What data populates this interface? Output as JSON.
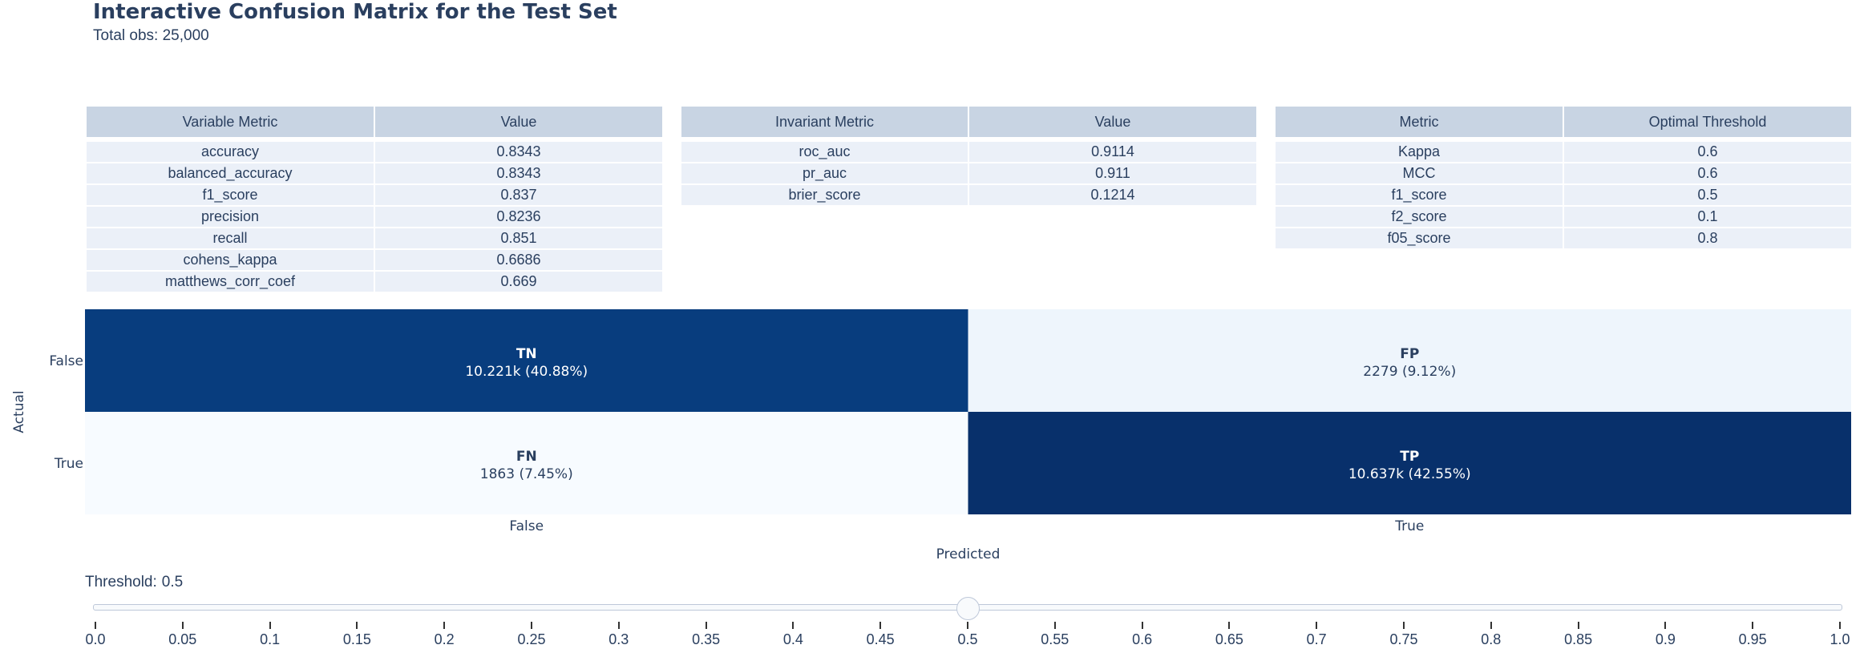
{
  "header": {
    "title": "Interactive Confusion Matrix for the Test Set",
    "subtitle": "Total obs: 25,000"
  },
  "tables": {
    "variable": {
      "headers": [
        "Variable Metric",
        "Value"
      ],
      "rows": [
        [
          "accuracy",
          "0.8343"
        ],
        [
          "balanced_accuracy",
          "0.8343"
        ],
        [
          "f1_score",
          "0.837"
        ],
        [
          "precision",
          "0.8236"
        ],
        [
          "recall",
          "0.851"
        ],
        [
          "cohens_kappa",
          "0.6686"
        ],
        [
          "matthews_corr_coef",
          "0.669"
        ]
      ]
    },
    "invariant": {
      "headers": [
        "Invariant Metric",
        "Value"
      ],
      "rows": [
        [
          "roc_auc",
          "0.9114"
        ],
        [
          "pr_auc",
          "0.911"
        ],
        [
          "brier_score",
          "0.1214"
        ]
      ]
    },
    "optimal": {
      "headers": [
        "Metric",
        "Optimal Threshold"
      ],
      "rows": [
        [
          "Kappa",
          "0.6"
        ],
        [
          "MCC",
          "0.6"
        ],
        [
          "f1_score",
          "0.5"
        ],
        [
          "f2_score",
          "0.1"
        ],
        [
          "f05_score",
          "0.8"
        ]
      ]
    }
  },
  "chart_data": {
    "type": "heatmap",
    "x": [
      "False",
      "True"
    ],
    "y": [
      "False",
      "True"
    ],
    "xlabel": "Predicted",
    "ylabel": "Actual",
    "z": [
      [
        10221,
        2279
      ],
      [
        1863,
        10637
      ]
    ],
    "cells": [
      {
        "row": 0,
        "col": 0,
        "name": "TN",
        "text": "10.221k (40.88%)",
        "value": 10221
      },
      {
        "row": 0,
        "col": 1,
        "name": "FP",
        "text": "2279 (9.12%)",
        "value": 2279
      },
      {
        "row": 1,
        "col": 0,
        "name": "FN",
        "text": "1863 (7.45%)",
        "value": 1863
      },
      {
        "row": 1,
        "col": 1,
        "name": "TP",
        "text": "10.637k (42.55%)",
        "value": 10637
      }
    ],
    "colorscale": "Blues"
  },
  "slider": {
    "prefix": "Threshold:",
    "value": 0.5,
    "value_label": "0.5",
    "min": 0.0,
    "max": 1.0,
    "ticks": [
      "0.0",
      "0.05",
      "0.1",
      "0.15",
      "0.2",
      "0.25",
      "0.3",
      "0.35",
      "0.4",
      "0.45",
      "0.5",
      "0.55",
      "0.6",
      "0.65",
      "0.7",
      "0.75",
      "0.8",
      "0.85",
      "0.9",
      "0.95",
      "1.0"
    ]
  }
}
